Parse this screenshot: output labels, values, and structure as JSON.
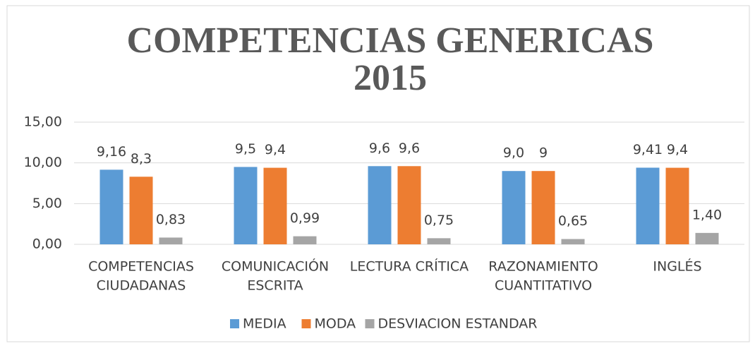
{
  "chart_data": {
    "type": "bar",
    "title": [
      "COMPETENCIAS GENERICAS",
      "2015"
    ],
    "categories": [
      [
        "COMPETENCIAS",
        "CIUDADANAS"
      ],
      [
        "COMUNICACIÓN",
        "ESCRITA"
      ],
      [
        "LECTURA CRÍTICA"
      ],
      [
        "RAZONAMIENTO",
        "CUANTITATIVO"
      ],
      [
        "INGLÉS"
      ]
    ],
    "series": [
      {
        "name": "MEDIA",
        "color": "#5b9bd5",
        "values": [
          9.16,
          9.5,
          9.6,
          9.0,
          9.41
        ],
        "value_labels": [
          "9,16",
          "9,5",
          "9,6",
          "9,0",
          "9,41"
        ]
      },
      {
        "name": "MODA",
        "color": "#ed7d31",
        "values": [
          8.3,
          9.4,
          9.6,
          9,
          9.4
        ],
        "value_labels": [
          "8,3",
          "9,4",
          "9,6",
          "9",
          "9,4"
        ]
      },
      {
        "name": "DESVIACION ESTANDAR",
        "color": "#a5a5a5",
        "values": [
          0.83,
          0.99,
          0.75,
          0.65,
          1.4
        ],
        "value_labels": [
          "0,83",
          "0,99",
          "0,75",
          "0,65",
          "1,40"
        ]
      }
    ],
    "ylim": [
      0,
      15
    ],
    "yticks": [
      {
        "value": 0,
        "label": "0,00"
      },
      {
        "value": 5,
        "label": "5,00"
      },
      {
        "value": 10,
        "label": "10,00"
      },
      {
        "value": 15,
        "label": "15,00"
      }
    ],
    "grid": true,
    "legend": "bottom"
  }
}
